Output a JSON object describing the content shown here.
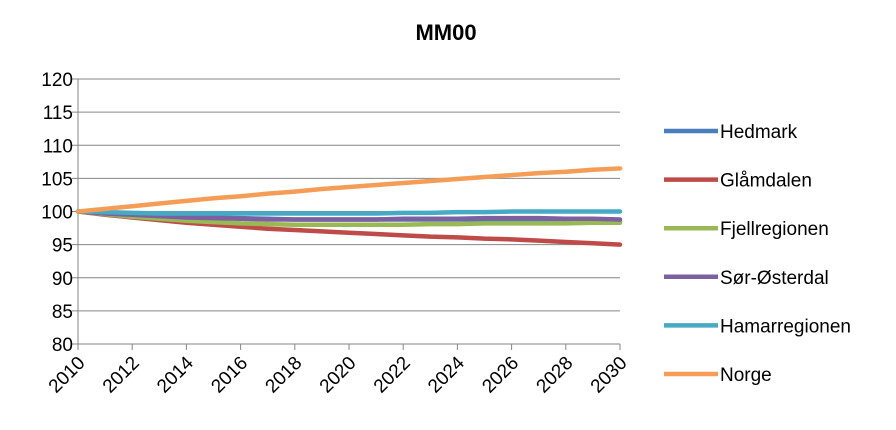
{
  "chart_data": {
    "type": "line",
    "title": "MM00",
    "xlabel": "",
    "ylabel": "",
    "x": [
      2010,
      2011,
      2012,
      2013,
      2014,
      2015,
      2016,
      2017,
      2018,
      2019,
      2020,
      2021,
      2022,
      2023,
      2024,
      2025,
      2026,
      2027,
      2028,
      2029,
      2030
    ],
    "x_ticks": [
      "2010",
      "2012",
      "2014",
      "2016",
      "2018",
      "2020",
      "2022",
      "2024",
      "2026",
      "2028",
      "2030"
    ],
    "ylim": [
      80,
      120
    ],
    "y_ticks": [
      "80",
      "85",
      "90",
      "95",
      "100",
      "105",
      "110",
      "115",
      "120"
    ],
    "grid": "horizontal",
    "legend_position": "right",
    "series": [
      {
        "name": "Hedmark",
        "color": "#4A7EBB",
        "values": [
          100,
          99.7,
          99.5,
          99.3,
          99.2,
          99.1,
          99.0,
          98.9,
          98.8,
          98.8,
          98.8,
          98.8,
          98.8,
          98.8,
          98.8,
          98.8,
          98.8,
          98.7,
          98.7,
          98.6,
          98.5
        ]
      },
      {
        "name": "Glåmdalen",
        "color": "#BE4B48",
        "values": [
          100,
          99.5,
          99.1,
          98.7,
          98.3,
          98.0,
          97.7,
          97.4,
          97.2,
          97.0,
          96.8,
          96.6,
          96.4,
          96.2,
          96.1,
          95.9,
          95.8,
          95.6,
          95.4,
          95.2,
          95.0
        ]
      },
      {
        "name": "Fjellregionen",
        "color": "#98B954",
        "values": [
          100,
          99.6,
          99.2,
          98.9,
          98.6,
          98.4,
          98.2,
          98.1,
          98.0,
          98.0,
          98.0,
          98.0,
          98.0,
          98.1,
          98.1,
          98.2,
          98.2,
          98.2,
          98.2,
          98.3,
          98.3
        ]
      },
      {
        "name": "Sør-Østerdal",
        "color": "#7D60A0",
        "values": [
          100,
          99.7,
          99.5,
          99.3,
          99.1,
          99.0,
          98.9,
          98.8,
          98.8,
          98.8,
          98.8,
          98.8,
          98.9,
          98.9,
          98.9,
          99.0,
          99.0,
          99.0,
          98.9,
          98.9,
          98.8
        ]
      },
      {
        "name": "Hamarregionen",
        "color": "#46AAC5",
        "values": [
          100,
          99.9,
          99.8,
          99.7,
          99.7,
          99.7,
          99.7,
          99.7,
          99.7,
          99.7,
          99.7,
          99.7,
          99.8,
          99.8,
          99.9,
          99.9,
          100.0,
          100.0,
          100.0,
          100.0,
          100.0
        ]
      },
      {
        "name": "Norge",
        "color": "#F59D56",
        "values": [
          100,
          100.4,
          100.8,
          101.2,
          101.6,
          102.0,
          102.3,
          102.7,
          103.0,
          103.4,
          103.7,
          104.0,
          104.3,
          104.6,
          104.9,
          105.2,
          105.5,
          105.8,
          106.0,
          106.3,
          106.5
        ]
      }
    ]
  }
}
